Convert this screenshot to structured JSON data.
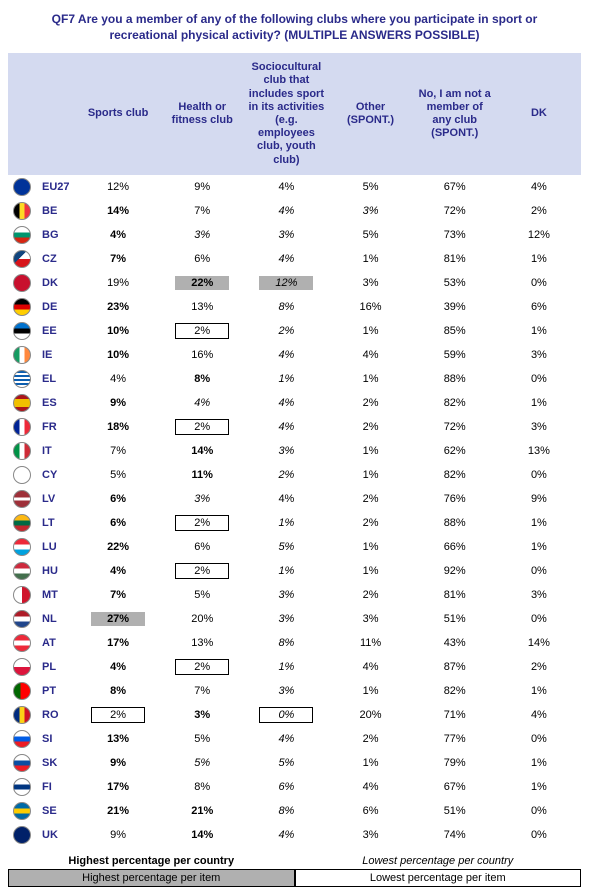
{
  "title": "QF7 Are you a member of any of the following clubs where you participate in sport or recreational physical activity? (MULTIPLE ANSWERS POSSIBLE)",
  "columns": [
    "Sports club",
    "Health or fitness club",
    "Sociocultural club that includes sport in its activities (e.g. employees club, youth club)",
    "Other (SPONT.)",
    "No, I am not a member of any club (SPONT.)",
    "DK"
  ],
  "legend": {
    "row_high": "Highest percentage per country",
    "row_low": "Lowest percentage per country",
    "item_high": "Highest percentage per item",
    "item_low": "Lowest percentage per item"
  },
  "flag_gradients": {
    "EU27": "radial-gradient(circle,#003399 60%,#003399)",
    "BE": "linear-gradient(90deg,#000 33%,#fdda24 33% 66%,#ef3340 66%)",
    "BG": "linear-gradient(#fff 33%,#00966e 33% 66%,#d62612 66%)",
    "CZ": "linear-gradient(135deg,#11457e 40%,transparent 40%),linear-gradient(#fff 50%,#d7141a 50%)",
    "DK": "radial-gradient(circle,#c8102e 0,#c8102e 100%)",
    "DE": "linear-gradient(#000 33%,#dd0000 33% 66%,#ffce00 66%)",
    "EE": "linear-gradient(#0072ce 33%,#000 33% 66%,#fff 66%)",
    "IE": "linear-gradient(90deg,#169b62 33%,#fff 33% 66%,#ff883e 66%)",
    "EL": "repeating-linear-gradient(#0d5eaf 0 2px,#fff 2px 4px)",
    "ES": "linear-gradient(#aa151b 25%,#f1bf00 25% 75%,#aa151b 75%)",
    "FR": "linear-gradient(90deg,#002395 33%,#fff 33% 66%,#ed2939 66%)",
    "IT": "linear-gradient(90deg,#009246 33%,#fff 33% 66%,#ce2b37 66%)",
    "CY": "radial-gradient(circle,#fff 0,#fff 100%)",
    "LV": "linear-gradient(#9e3039 40%,#fff 40% 60%,#9e3039 60%)",
    "LT": "linear-gradient(#fdb913 33%,#006a44 33% 66%,#c1272d 66%)",
    "LU": "linear-gradient(#ed2939 33%,#fff 33% 66%,#00a1de 66%)",
    "HU": "linear-gradient(#cd2a3e 33%,#fff 33% 66%,#436f4d 66%)",
    "MT": "linear-gradient(90deg,#fff 50%,#cf142b 50%)",
    "NL": "linear-gradient(#ae1c28 33%,#fff 33% 66%,#21468b 66%)",
    "AT": "linear-gradient(#ed2939 33%,#fff 33% 66%,#ed2939 66%)",
    "PL": "linear-gradient(#fff 50%,#dc143c 50%)",
    "PT": "linear-gradient(90deg,#006600 40%,#ff0000 40%)",
    "RO": "linear-gradient(90deg,#002b7f 33%,#fcd116 33% 66%,#ce1126 66%)",
    "SI": "linear-gradient(#fff 33%,#005ce5 33% 66%,#ed1c24 66%)",
    "SK": "linear-gradient(#fff 33%,#0b4ea2 33% 66%,#ee1c25 66%)",
    "FI": "linear-gradient(#fff 35%,#003580 35% 65%,#fff 65%)",
    "SE": "linear-gradient(#006aa7 35%,#fecc00 35% 65%,#006aa7 65%)",
    "UK": "radial-gradient(circle,#012169 0,#012169 100%)"
  },
  "rows": [
    {
      "code": "EU27",
      "v": [
        "12%",
        "9%",
        "4%",
        "5%",
        "67%",
        "4%"
      ],
      "rh": [],
      "rl": [],
      "ih": [],
      "il": []
    },
    {
      "code": "BE",
      "v": [
        "14%",
        "7%",
        "4%",
        "3%",
        "72%",
        "2%"
      ],
      "rh": [
        0
      ],
      "rl": [
        2,
        3
      ],
      "ih": [],
      "il": []
    },
    {
      "code": "BG",
      "v": [
        "4%",
        "3%",
        "3%",
        "5%",
        "73%",
        "12%"
      ],
      "rh": [
        0
      ],
      "rl": [
        1,
        2
      ],
      "ih": [],
      "il": []
    },
    {
      "code": "CZ",
      "v": [
        "7%",
        "6%",
        "4%",
        "1%",
        "81%",
        "1%"
      ],
      "rh": [
        0
      ],
      "rl": [
        2
      ],
      "ih": [],
      "il": []
    },
    {
      "code": "DK",
      "v": [
        "19%",
        "22%",
        "12%",
        "3%",
        "53%",
        "0%"
      ],
      "rh": [
        1
      ],
      "rl": [
        2
      ],
      "ih": [
        1,
        2
      ],
      "il": []
    },
    {
      "code": "DE",
      "v": [
        "23%",
        "13%",
        "8%",
        "16%",
        "39%",
        "6%"
      ],
      "rh": [
        0
      ],
      "rl": [
        2
      ],
      "ih": [],
      "il": []
    },
    {
      "code": "EE",
      "v": [
        "10%",
        "2%",
        "2%",
        "1%",
        "85%",
        "1%"
      ],
      "rh": [
        0
      ],
      "rl": [
        2
      ],
      "ih": [],
      "il": [
        1
      ]
    },
    {
      "code": "IE",
      "v": [
        "10%",
        "16%",
        "4%",
        "4%",
        "59%",
        "3%"
      ],
      "rh": [
        0
      ],
      "rl": [
        2
      ],
      "ih": [],
      "il": []
    },
    {
      "code": "EL",
      "v": [
        "4%",
        "8%",
        "1%",
        "1%",
        "88%",
        "0%"
      ],
      "rh": [
        1
      ],
      "rl": [
        2
      ],
      "ih": [],
      "il": []
    },
    {
      "code": "ES",
      "v": [
        "9%",
        "4%",
        "4%",
        "2%",
        "82%",
        "1%"
      ],
      "rh": [
        0
      ],
      "rl": [
        1,
        2
      ],
      "ih": [],
      "il": []
    },
    {
      "code": "FR",
      "v": [
        "18%",
        "2%",
        "4%",
        "2%",
        "72%",
        "3%"
      ],
      "rh": [
        0
      ],
      "rl": [
        2
      ],
      "ih": [],
      "il": [
        1
      ]
    },
    {
      "code": "IT",
      "v": [
        "7%",
        "14%",
        "3%",
        "1%",
        "62%",
        "13%"
      ],
      "rh": [
        1
      ],
      "rl": [
        2
      ],
      "ih": [],
      "il": []
    },
    {
      "code": "CY",
      "v": [
        "5%",
        "11%",
        "2%",
        "1%",
        "82%",
        "0%"
      ],
      "rh": [
        1
      ],
      "rl": [
        2
      ],
      "ih": [],
      "il": []
    },
    {
      "code": "LV",
      "v": [
        "6%",
        "3%",
        "4%",
        "2%",
        "76%",
        "9%"
      ],
      "rh": [
        0
      ],
      "rl": [
        1
      ],
      "ih": [],
      "il": []
    },
    {
      "code": "LT",
      "v": [
        "6%",
        "2%",
        "1%",
        "2%",
        "88%",
        "1%"
      ],
      "rh": [
        0
      ],
      "rl": [
        2
      ],
      "ih": [],
      "il": [
        1
      ]
    },
    {
      "code": "LU",
      "v": [
        "22%",
        "6%",
        "5%",
        "1%",
        "66%",
        "1%"
      ],
      "rh": [
        0
      ],
      "rl": [
        2
      ],
      "ih": [],
      "il": []
    },
    {
      "code": "HU",
      "v": [
        "4%",
        "2%",
        "1%",
        "1%",
        "92%",
        "0%"
      ],
      "rh": [
        0
      ],
      "rl": [
        2
      ],
      "ih": [],
      "il": [
        1
      ]
    },
    {
      "code": "MT",
      "v": [
        "7%",
        "5%",
        "3%",
        "2%",
        "81%",
        "3%"
      ],
      "rh": [
        0
      ],
      "rl": [
        2
      ],
      "ih": [],
      "il": []
    },
    {
      "code": "NL",
      "v": [
        "27%",
        "20%",
        "3%",
        "3%",
        "51%",
        "0%"
      ],
      "rh": [
        0
      ],
      "rl": [
        2
      ],
      "ih": [
        0
      ],
      "il": []
    },
    {
      "code": "AT",
      "v": [
        "17%",
        "13%",
        "8%",
        "11%",
        "43%",
        "14%"
      ],
      "rh": [
        0
      ],
      "rl": [
        2
      ],
      "ih": [],
      "il": []
    },
    {
      "code": "PL",
      "v": [
        "4%",
        "2%",
        "1%",
        "4%",
        "87%",
        "2%"
      ],
      "rh": [
        0
      ],
      "rl": [
        2
      ],
      "ih": [],
      "il": [
        1
      ]
    },
    {
      "code": "PT",
      "v": [
        "8%",
        "7%",
        "3%",
        "1%",
        "82%",
        "1%"
      ],
      "rh": [
        0
      ],
      "rl": [
        2
      ],
      "ih": [],
      "il": []
    },
    {
      "code": "RO",
      "v": [
        "2%",
        "3%",
        "0%",
        "20%",
        "71%",
        "4%"
      ],
      "rh": [
        1
      ],
      "rl": [
        2
      ],
      "ih": [],
      "il": [
        0,
        2
      ]
    },
    {
      "code": "SI",
      "v": [
        "13%",
        "5%",
        "4%",
        "2%",
        "77%",
        "0%"
      ],
      "rh": [
        0
      ],
      "rl": [
        2
      ],
      "ih": [],
      "il": []
    },
    {
      "code": "SK",
      "v": [
        "9%",
        "5%",
        "5%",
        "1%",
        "79%",
        "1%"
      ],
      "rh": [
        0
      ],
      "rl": [
        1,
        2
      ],
      "ih": [],
      "il": []
    },
    {
      "code": "FI",
      "v": [
        "17%",
        "8%",
        "6%",
        "4%",
        "67%",
        "1%"
      ],
      "rh": [
        0
      ],
      "rl": [
        2
      ],
      "ih": [],
      "il": []
    },
    {
      "code": "SE",
      "v": [
        "21%",
        "21%",
        "8%",
        "6%",
        "51%",
        "0%"
      ],
      "rh": [
        0,
        1
      ],
      "rl": [
        2
      ],
      "ih": [],
      "il": []
    },
    {
      "code": "UK",
      "v": [
        "9%",
        "14%",
        "4%",
        "3%",
        "74%",
        "0%"
      ],
      "rh": [
        1
      ],
      "rl": [
        2
      ],
      "ih": [],
      "il": []
    }
  ]
}
